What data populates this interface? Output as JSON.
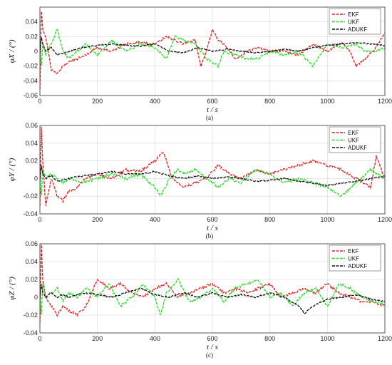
{
  "chart_data": [
    {
      "type": "line",
      "subfigure": "(a)",
      "ylabel": "φX / (°)",
      "xlabel": "t / s",
      "xlim": [
        0,
        1200
      ],
      "ylim": [
        -0.06,
        0.06
      ],
      "xticks": [
        0,
        200,
        400,
        600,
        800,
        1000,
        1200
      ],
      "yticks": [
        -0.06,
        -0.04,
        -0.02,
        0,
        0.02,
        0.04
      ],
      "grid": true,
      "legend_position": "top-right",
      "series": [
        {
          "name": "EKF",
          "color": "#e02020",
          "x": [
            0,
            5,
            10,
            20,
            40,
            60,
            80,
            100,
            130,
            160,
            200,
            250,
            300,
            350,
            400,
            440,
            470,
            500,
            540,
            560,
            580,
            600,
            620,
            640,
            680,
            720,
            760,
            800,
            850,
            900,
            950,
            1000,
            1050,
            1080,
            1100,
            1130,
            1160,
            1200
          ],
          "y": [
            -0.05,
            0.055,
            0.03,
            0.02,
            -0.025,
            -0.03,
            -0.02,
            -0.015,
            -0.01,
            -0.005,
            0.005,
            0.0,
            0.01,
            0.012,
            0.01,
            0.02,
            0.015,
            0.01,
            0.015,
            -0.02,
            0.0,
            0.03,
            0.015,
            0.01,
            -0.01,
            0.0,
            0.005,
            0.0,
            0.0,
            -0.005,
            0.01,
            0.0,
            0.012,
            0.0,
            -0.02,
            -0.01,
            0.0,
            0.025
          ]
        },
        {
          "name": "UKF",
          "color": "#22dd22",
          "x": [
            0,
            5,
            10,
            20,
            40,
            60,
            80,
            100,
            130,
            160,
            200,
            250,
            300,
            350,
            400,
            440,
            470,
            500,
            540,
            580,
            620,
            640,
            680,
            720,
            760,
            800,
            850,
            900,
            950,
            1000,
            1050,
            1100,
            1130,
            1160,
            1200
          ],
          "y": [
            0.0,
            -0.02,
            0.01,
            -0.005,
            0.01,
            0.03,
            0.0,
            -0.01,
            0.0,
            0.01,
            -0.005,
            0.015,
            0.0,
            0.01,
            0.005,
            -0.01,
            0.02,
            0.015,
            0.01,
            -0.01,
            -0.02,
            0.0,
            -0.005,
            -0.01,
            -0.01,
            0.0,
            -0.005,
            0.0,
            -0.02,
            0.01,
            0.005,
            0.01,
            0.0,
            0.0,
            0.005
          ]
        },
        {
          "name": "ADUKF",
          "color": "#111111",
          "x": [
            0,
            5,
            10,
            20,
            40,
            60,
            80,
            100,
            150,
            200,
            250,
            300,
            350,
            400,
            450,
            500,
            550,
            600,
            650,
            700,
            750,
            800,
            850,
            900,
            950,
            1000,
            1050,
            1100,
            1150,
            1200
          ],
          "y": [
            0.0,
            0.02,
            0.01,
            0.0,
            0.005,
            -0.005,
            -0.003,
            0.0,
            0.005,
            0.008,
            0.01,
            0.008,
            0.007,
            0.01,
            0.0,
            -0.002,
            0.005,
            0.0,
            0.003,
            0.0,
            -0.002,
            0.0,
            0.003,
            0.0,
            0.005,
            0.008,
            0.01,
            0.012,
            0.01,
            0.008
          ]
        }
      ]
    },
    {
      "type": "line",
      "subfigure": "(b)",
      "ylabel": "φY / (°)",
      "xlabel": "t / s",
      "xlim": [
        0,
        1200
      ],
      "ylim": [
        -0.04,
        0.06
      ],
      "xticks": [
        0,
        200,
        400,
        600,
        800,
        1000,
        1200
      ],
      "yticks": [
        -0.04,
        -0.02,
        0,
        0.02,
        0.04,
        0.06
      ],
      "grid": true,
      "legend_position": "top-right",
      "series": [
        {
          "name": "EKF",
          "color": "#e02020",
          "x": [
            0,
            5,
            10,
            20,
            40,
            60,
            80,
            100,
            130,
            160,
            200,
            250,
            300,
            350,
            400,
            430,
            460,
            500,
            540,
            580,
            620,
            660,
            700,
            750,
            800,
            850,
            900,
            950,
            1000,
            1050,
            1100,
            1150,
            1170,
            1200
          ],
          "y": [
            -0.03,
            0.06,
            0.02,
            -0.03,
            0.0,
            -0.02,
            -0.025,
            -0.015,
            -0.01,
            0.0,
            0.005,
            0.0,
            0.01,
            0.008,
            0.02,
            0.03,
            0.0,
            -0.01,
            -0.005,
            0.0,
            0.015,
            0.005,
            0.0,
            0.01,
            0.005,
            0.01,
            0.015,
            0.02,
            0.015,
            0.01,
            0.0,
            -0.01,
            0.025,
            0.0
          ]
        },
        {
          "name": "UKF",
          "color": "#22dd22",
          "x": [
            0,
            5,
            10,
            20,
            40,
            60,
            80,
            100,
            150,
            200,
            250,
            300,
            350,
            400,
            420,
            450,
            480,
            500,
            540,
            580,
            620,
            660,
            700,
            750,
            800,
            850,
            900,
            950,
            1000,
            1050,
            1100,
            1150,
            1200
          ],
          "y": [
            0.0,
            -0.02,
            0.01,
            0.0,
            0.005,
            0.0,
            -0.005,
            0.0,
            -0.005,
            0.0,
            0.005,
            0.0,
            0.005,
            -0.01,
            -0.02,
            0.0,
            0.01,
            0.005,
            0.01,
            0.0,
            -0.01,
            0.0,
            -0.005,
            0.01,
            0.005,
            -0.005,
            0.0,
            -0.005,
            -0.01,
            -0.02,
            -0.005,
            0.01,
            0.0
          ]
        },
        {
          "name": "ADUKF",
          "color": "#111111",
          "x": [
            0,
            5,
            10,
            20,
            40,
            60,
            80,
            100,
            150,
            200,
            250,
            300,
            350,
            400,
            450,
            500,
            550,
            600,
            650,
            700,
            750,
            800,
            850,
            900,
            950,
            1000,
            1050,
            1100,
            1150,
            1200
          ],
          "y": [
            0.0,
            0.015,
            0.005,
            0.0,
            0.003,
            -0.003,
            -0.002,
            0.0,
            0.003,
            0.005,
            0.008,
            0.005,
            0.005,
            0.008,
            0.003,
            0.0,
            0.003,
            0.0,
            0.002,
            0.0,
            -0.003,
            -0.002,
            0.0,
            -0.003,
            -0.005,
            -0.008,
            -0.005,
            -0.003,
            0.0,
            0.002
          ]
        }
      ]
    },
    {
      "type": "line",
      "subfigure": "(c)",
      "ylabel": "φZ / (°)",
      "xlabel": "t / s",
      "xlim": [
        0,
        1200
      ],
      "ylim": [
        -0.04,
        0.06
      ],
      "xticks": [
        0,
        200,
        400,
        600,
        800,
        1000,
        1200
      ],
      "yticks": [
        -0.04,
        -0.02,
        0,
        0.02,
        0.04,
        0.06
      ],
      "grid": true,
      "legend_position": "top-right",
      "series": [
        {
          "name": "EKF",
          "color": "#e02020",
          "x": [
            0,
            5,
            10,
            20,
            40,
            60,
            80,
            100,
            130,
            160,
            200,
            240,
            280,
            320,
            360,
            400,
            440,
            480,
            520,
            560,
            600,
            640,
            680,
            720,
            760,
            800,
            840,
            880,
            920,
            960,
            1000,
            1040,
            1080,
            1120,
            1160,
            1200
          ],
          "y": [
            -0.03,
            0.06,
            0.02,
            0.0,
            -0.01,
            -0.02,
            -0.01,
            -0.015,
            -0.02,
            -0.01,
            0.02,
            0.01,
            0.015,
            0.005,
            0.0,
            0.01,
            0.015,
            0.0,
            0.005,
            0.01,
            0.015,
            0.005,
            0.01,
            0.005,
            0.01,
            0.015,
            0.0,
            0.005,
            0.01,
            0.005,
            0.015,
            0.005,
            0.0,
            -0.005,
            -0.005,
            -0.01
          ]
        },
        {
          "name": "UKF",
          "color": "#22dd22",
          "x": [
            0,
            5,
            10,
            20,
            40,
            60,
            80,
            100,
            130,
            160,
            200,
            240,
            280,
            320,
            360,
            400,
            420,
            440,
            480,
            520,
            560,
            600,
            640,
            680,
            720,
            760,
            800,
            840,
            880,
            920,
            960,
            1000,
            1040,
            1080,
            1120,
            1160,
            1200
          ],
          "y": [
            0.0,
            -0.02,
            0.015,
            0.0,
            0.005,
            0.01,
            -0.005,
            0.005,
            0.0,
            0.01,
            0.0,
            0.015,
            -0.01,
            0.0,
            0.015,
            0.0,
            -0.02,
            0.005,
            0.02,
            -0.005,
            0.0,
            0.01,
            -0.005,
            0.01,
            0.015,
            0.02,
            0.0,
            0.005,
            -0.01,
            0.005,
            0.01,
            -0.01,
            0.015,
            0.01,
            0.0,
            -0.005,
            -0.008
          ]
        },
        {
          "name": "ADUKF",
          "color": "#111111",
          "x": [
            0,
            5,
            10,
            20,
            40,
            60,
            80,
            100,
            150,
            200,
            250,
            300,
            350,
            400,
            450,
            500,
            550,
            600,
            650,
            700,
            750,
            800,
            850,
            900,
            920,
            950,
            1000,
            1050,
            1100,
            1150,
            1200
          ],
          "y": [
            0.0,
            0.015,
            0.005,
            0.0,
            0.005,
            0.0,
            0.003,
            0.0,
            0.005,
            0.003,
            0.0,
            0.005,
            0.01,
            0.003,
            0.0,
            0.005,
            0.0,
            0.005,
            0.0,
            0.003,
            0.0,
            0.005,
            0.0,
            -0.01,
            -0.018,
            -0.01,
            -0.002,
            0.0,
            0.003,
            -0.002,
            -0.005
          ]
        }
      ]
    }
  ]
}
